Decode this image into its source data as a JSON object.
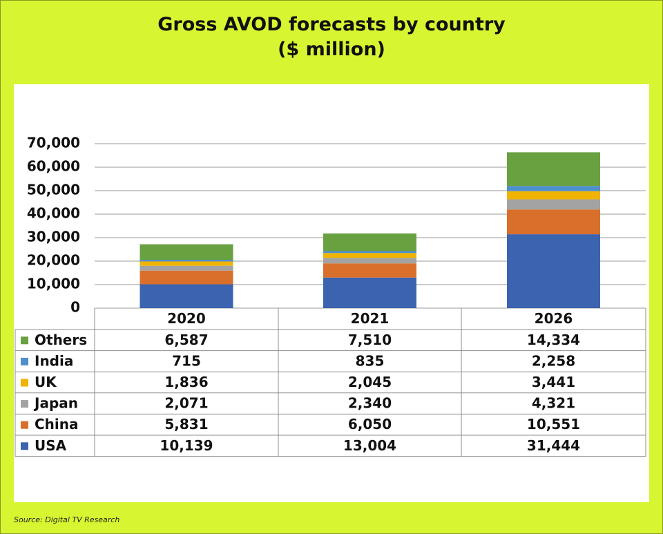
{
  "title": {
    "line1": "Gross AVOD forecasts by country",
    "line2": "($ million)"
  },
  "source": "Source: Digital TV Research",
  "colors": {
    "background": "#d8f531",
    "panel": "#ffffff",
    "USA": "#3b63b0",
    "China": "#d86f2b",
    "Japan": "#a3a3a3",
    "UK": "#f0b400",
    "India": "#4e8fcc",
    "Others": "#69a040"
  },
  "chart_data": {
    "type": "bar",
    "stacked": true,
    "title": "Gross AVOD forecasts by country ($ million)",
    "categories": [
      "2020",
      "2021",
      "2026"
    ],
    "ylim": [
      0,
      70000
    ],
    "yticks": [
      0,
      10000,
      20000,
      30000,
      40000,
      50000,
      60000,
      70000
    ],
    "ytick_labels": [
      "0",
      "10,000",
      "20,000",
      "30,000",
      "40,000",
      "50,000",
      "60,000",
      "70,000"
    ],
    "grid": true,
    "series": [
      {
        "name": "USA",
        "values": [
          10139,
          13004,
          31444
        ],
        "labels": [
          "10,139",
          "13,004",
          "31,444"
        ]
      },
      {
        "name": "China",
        "values": [
          5831,
          6050,
          10551
        ],
        "labels": [
          "5,831",
          "6,050",
          "10,551"
        ]
      },
      {
        "name": "Japan",
        "values": [
          2071,
          2340,
          4321
        ],
        "labels": [
          "2,071",
          "2,340",
          "4,321"
        ]
      },
      {
        "name": "UK",
        "values": [
          1836,
          2045,
          3441
        ],
        "labels": [
          "1,836",
          "2,045",
          "3,441"
        ]
      },
      {
        "name": "India",
        "values": [
          715,
          835,
          2258
        ],
        "labels": [
          "715",
          "835",
          "2,258"
        ]
      },
      {
        "name": "Others",
        "values": [
          6587,
          7510,
          14334
        ],
        "labels": [
          "6,587",
          "7,510",
          "14,334"
        ]
      }
    ],
    "table_row_order": [
      "Others",
      "India",
      "UK",
      "Japan",
      "China",
      "USA"
    ]
  }
}
